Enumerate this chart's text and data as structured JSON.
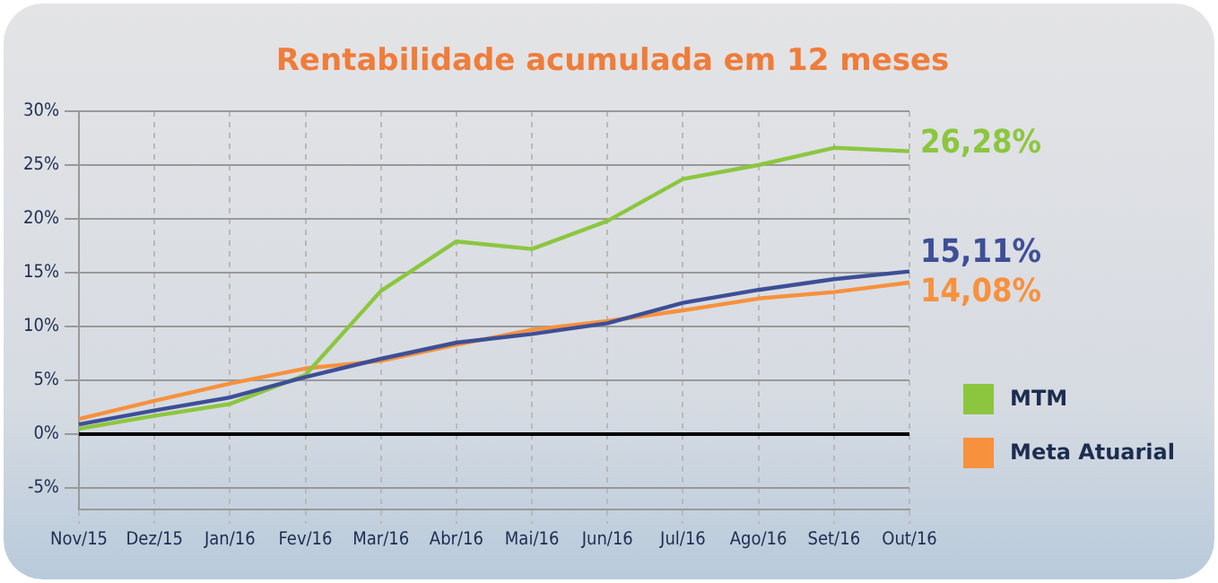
{
  "chart_data": {
    "type": "line",
    "title": "Rentabilidade acumulada em 12 meses",
    "categories": [
      "Nov/15",
      "Dez/15",
      "Jan/16",
      "Fev/16",
      "Mar/16",
      "Abr/16",
      "Mai/16",
      "Jun/16",
      "Jul/16",
      "Ago/16",
      "Set/16",
      "Out/16"
    ],
    "series": [
      {
        "color": "#3d4f96",
        "values": [
          0.9,
          2.2,
          3.4,
          5.3,
          7.0,
          8.5,
          9.3,
          10.3,
          12.2,
          13.4,
          14.4,
          15.11
        ],
        "value_labels": [
          null,
          null,
          null,
          null,
          null,
          null,
          null,
          null,
          null,
          null,
          null,
          "15,11%"
        ]
      },
      {
        "name": "MTM",
        "color": "#8cc63f",
        "values": [
          0.5,
          1.7,
          2.8,
          5.5,
          13.3,
          17.9,
          17.2,
          19.8,
          23.7,
          25.0,
          26.6,
          26.28
        ],
        "value_labels": [
          null,
          null,
          null,
          null,
          null,
          null,
          null,
          null,
          null,
          null,
          null,
          "26,28%"
        ]
      },
      {
        "name": "Meta Atuarial",
        "color": "#f7913d",
        "values": [
          1.4,
          3.1,
          4.7,
          6.1,
          6.8,
          8.3,
          9.7,
          10.5,
          11.5,
          12.6,
          13.2,
          14.08
        ],
        "value_labels": [
          null,
          null,
          null,
          null,
          null,
          null,
          null,
          null,
          null,
          null,
          null,
          "14,08%"
        ]
      }
    ],
    "ylim": [
      -7,
      30
    ],
    "yticks": [
      {
        "value": -5,
        "label": "-5%"
      },
      {
        "value": 0,
        "label": "0%"
      },
      {
        "value": 5,
        "label": "5%"
      },
      {
        "value": 10,
        "label": "10%"
      },
      {
        "value": 15,
        "label": "15%"
      },
      {
        "value": 20,
        "label": "20%"
      },
      {
        "value": 25,
        "label": "25%"
      },
      {
        "value": 30,
        "label": "30%"
      }
    ],
    "ref_lines": [
      {
        "axis": "y",
        "value": 0,
        "color": "#000000"
      }
    ],
    "grid": true,
    "legend": "right",
    "marker": "none",
    "line_style": "solid"
  }
}
